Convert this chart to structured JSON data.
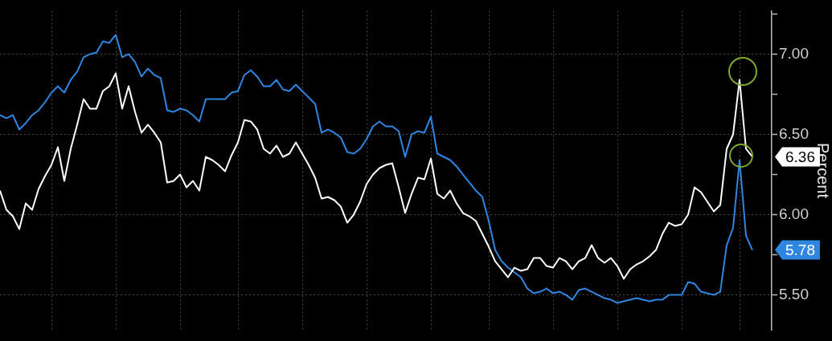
{
  "chart_data": {
    "type": "line",
    "categories": [
      null,
      null,
      null,
      null,
      null,
      null,
      null,
      null,
      null,
      null,
      null,
      null,
      null,
      null,
      null,
      null,
      null,
      null,
      null,
      null,
      null,
      null,
      null,
      null,
      null,
      null,
      null,
      null,
      null,
      null,
      null,
      null,
      null,
      null,
      null,
      null,
      null,
      null,
      null,
      null,
      null,
      null,
      null,
      null,
      null,
      null,
      null,
      null,
      null,
      null,
      null,
      null,
      null,
      null,
      null,
      null,
      null,
      null,
      null,
      null,
      null,
      null,
      null,
      null,
      null,
      null,
      null,
      null,
      null,
      null,
      null,
      null,
      null,
      null,
      null,
      null,
      null,
      null,
      null,
      null,
      null,
      null,
      null,
      null,
      null,
      null,
      null,
      null,
      null,
      null,
      null,
      null,
      null,
      null,
      null,
      null,
      null,
      null,
      null,
      null,
      null,
      null,
      null,
      null,
      null,
      null,
      null,
      null,
      null,
      null,
      null,
      null,
      null,
      null,
      null,
      null,
      null,
      null,
      null,
      null,
      null
    ],
    "series": [
      {
        "color": "#ffffff",
        "values": [
          6.15,
          6.03,
          5.99,
          5.91,
          6.07,
          6.03,
          6.16,
          6.24,
          6.31,
          6.42,
          6.21,
          6.41,
          6.56,
          6.72,
          6.66,
          6.66,
          6.77,
          6.8,
          6.88,
          6.66,
          6.8,
          6.64,
          6.51,
          6.56,
          6.51,
          6.45,
          6.2,
          6.21,
          6.25,
          6.17,
          6.21,
          6.15,
          6.36,
          6.34,
          6.31,
          6.27,
          6.37,
          6.45,
          6.59,
          6.58,
          6.53,
          6.41,
          6.38,
          6.43,
          6.36,
          6.38,
          6.45,
          6.38,
          6.31,
          6.23,
          6.1,
          6.11,
          6.09,
          6.05,
          5.95,
          6.0,
          6.08,
          6.19,
          6.25,
          6.29,
          6.31,
          6.32,
          6.17,
          6.01,
          6.13,
          6.23,
          6.22,
          6.35,
          6.13,
          6.1,
          6.15,
          6.07,
          6.01,
          5.99,
          5.96,
          5.88,
          5.8,
          5.71,
          5.66,
          5.61,
          5.67,
          5.65,
          5.66,
          5.73,
          5.73,
          5.68,
          5.67,
          5.73,
          5.71,
          5.66,
          5.71,
          5.73,
          5.81,
          5.73,
          5.7,
          5.73,
          5.68,
          5.6,
          5.66,
          5.69,
          5.71,
          5.74,
          5.78,
          5.88,
          5.95,
          5.93,
          5.94,
          6.0,
          6.17,
          6.14,
          6.08,
          6.02,
          6.06,
          6.41,
          6.5,
          6.84,
          6.41,
          6.36,
          null,
          null,
          null
        ]
      },
      {
        "color": "#2f86e0",
        "values": [
          6.62,
          6.6,
          6.62,
          6.53,
          6.57,
          6.62,
          6.65,
          6.7,
          6.76,
          6.8,
          6.76,
          6.84,
          6.89,
          6.98,
          7.0,
          7.01,
          7.08,
          7.07,
          7.12,
          6.98,
          7.0,
          6.95,
          6.86,
          6.91,
          6.87,
          6.85,
          6.65,
          6.64,
          6.66,
          6.65,
          6.62,
          6.58,
          6.72,
          6.72,
          6.72,
          6.72,
          6.76,
          6.77,
          6.87,
          6.9,
          6.86,
          6.8,
          6.8,
          6.84,
          6.78,
          6.77,
          6.81,
          6.77,
          6.73,
          6.69,
          6.51,
          6.53,
          6.51,
          6.48,
          6.39,
          6.38,
          6.41,
          6.47,
          6.55,
          6.58,
          6.55,
          6.55,
          6.52,
          6.36,
          6.5,
          6.52,
          6.51,
          6.61,
          6.38,
          6.36,
          6.34,
          6.3,
          6.25,
          6.2,
          6.15,
          6.11,
          5.96,
          5.78,
          5.71,
          5.67,
          5.64,
          5.61,
          5.54,
          5.51,
          5.52,
          5.54,
          5.51,
          5.52,
          5.5,
          5.47,
          5.53,
          5.54,
          5.52,
          5.5,
          5.48,
          5.47,
          5.45,
          5.46,
          5.47,
          5.48,
          5.47,
          5.46,
          5.47,
          5.47,
          5.5,
          5.5,
          5.5,
          5.58,
          5.57,
          5.52,
          5.51,
          5.5,
          5.52,
          5.81,
          5.92,
          6.34,
          5.87,
          5.78,
          null,
          null,
          null
        ]
      }
    ],
    "annotations": [
      "6.36",
      "5.78"
    ],
    "ylabel": "Percent",
    "ylim": [
      5.28,
      7.27
    ],
    "yticks": [
      {
        "value": 5.5,
        "label": "5.50"
      },
      {
        "value": 5.75,
        "label": null
      },
      {
        "value": 6,
        "label": "6.00"
      },
      {
        "value": 6.25,
        "label": null
      },
      {
        "value": 6.5,
        "label": "6.50"
      },
      {
        "value": 6.75,
        "label": null
      },
      {
        "value": 7,
        "label": "7.00"
      },
      {
        "value": 7.25,
        "label": null
      }
    ],
    "grid": true,
    "tick_labels": "y"
  }
}
